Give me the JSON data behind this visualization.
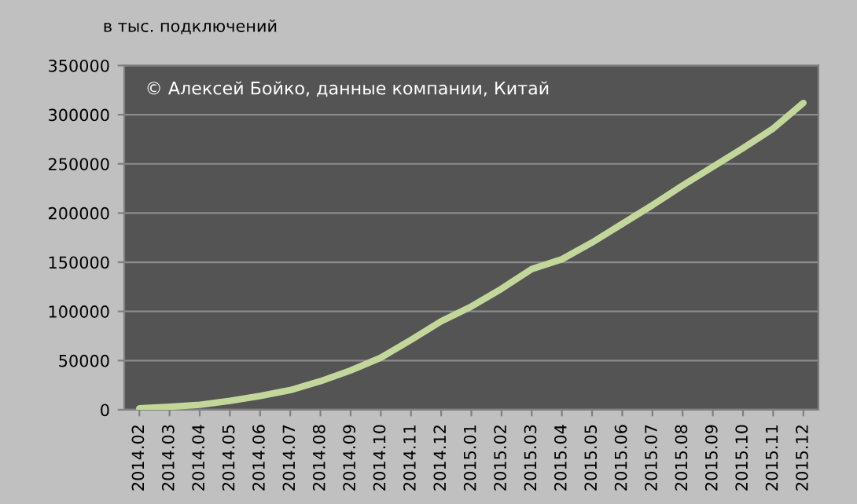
{
  "chart_data": {
    "type": "line",
    "ylabel": "в тыс. подключений",
    "annotations": [
      "© Алексей Бойко, данные компании, Китай"
    ],
    "categories": [
      "2014.02",
      "2014.03",
      "2014.04",
      "2014.05",
      "2014.06",
      "2014.07",
      "2014.08",
      "2014.09",
      "2014.10",
      "2014.11",
      "2014.12",
      "2015.01",
      "2015.02",
      "2015.03",
      "2015.04",
      "2015.05",
      "2015.06",
      "2015.07",
      "2015.08",
      "2015.09",
      "2015.10",
      "2015.11",
      "2015.12"
    ],
    "series": [
      {
        "color": "#c4d79b",
        "values": [
          1400,
          3000,
          5000,
          9000,
          14000,
          20000,
          29000,
          40000,
          53000,
          71000,
          90000,
          105000,
          123000,
          143000,
          153000,
          170000,
          189000,
          208000,
          228000,
          247000,
          266000,
          286000,
          312000
        ]
      }
    ],
    "ylim": [
      0,
      350000
    ],
    "yticks": [
      0,
      50000,
      100000,
      150000,
      200000,
      250000,
      300000,
      350000
    ],
    "grid": "y",
    "legend": false,
    "marker": "none",
    "line_style": "solid"
  }
}
